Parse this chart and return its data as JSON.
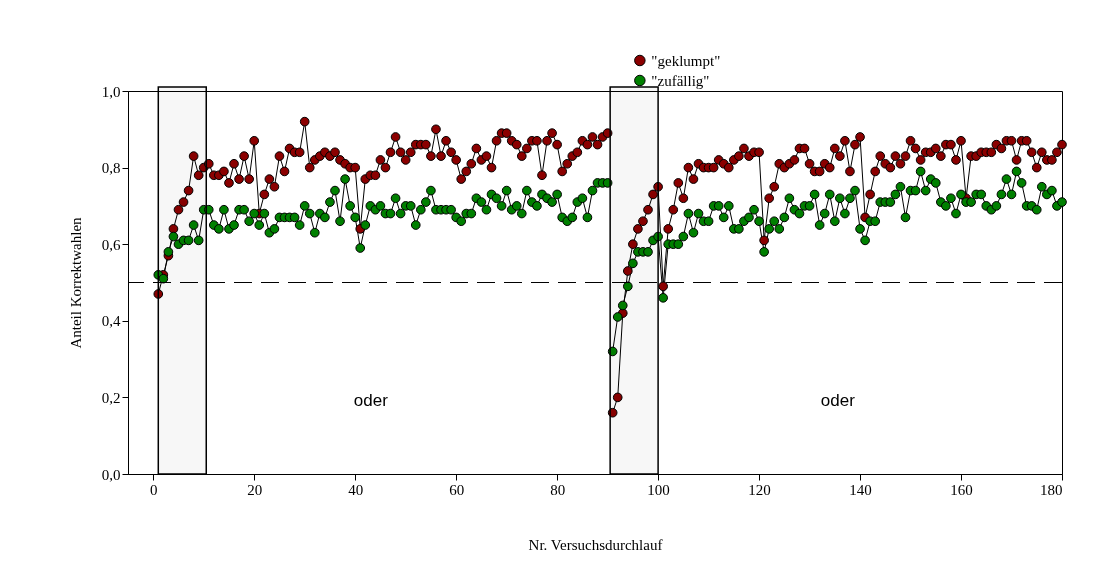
{
  "chart_data": {
    "type": "line",
    "xlabel": "Nr. Versuchsdurchlauf",
    "ylabel": "Anteil Korrektwahlen",
    "x": [
      1,
      2,
      3,
      4,
      5,
      6,
      7,
      8,
      9,
      10,
      11,
      12,
      13,
      14,
      15,
      16,
      17,
      18,
      19,
      20,
      21,
      22,
      23,
      24,
      25,
      26,
      27,
      28,
      29,
      30,
      31,
      32,
      33,
      34,
      35,
      36,
      37,
      38,
      39,
      40,
      41,
      42,
      43,
      44,
      45,
      46,
      47,
      48,
      49,
      50,
      51,
      52,
      53,
      54,
      55,
      56,
      57,
      58,
      59,
      60,
      61,
      62,
      63,
      64,
      65,
      66,
      67,
      68,
      69,
      70,
      71,
      72,
      73,
      74,
      75,
      76,
      77,
      78,
      79,
      80,
      81,
      82,
      83,
      84,
      85,
      86,
      87,
      88,
      89,
      90,
      90.5,
      91,
      92,
      93,
      94,
      95,
      96,
      97,
      98,
      99,
      100,
      101,
      102,
      103,
      104,
      105,
      106,
      107,
      108,
      109,
      110,
      111,
      112,
      113,
      114,
      115,
      116,
      117,
      118,
      119,
      120,
      121,
      122,
      123,
      124,
      125,
      126,
      127,
      128,
      129,
      130,
      131,
      132,
      133,
      134,
      135,
      136,
      137,
      138,
      139,
      140,
      141,
      142,
      143,
      144,
      145,
      146,
      147,
      148,
      149,
      150,
      151,
      152,
      153,
      154,
      155,
      156,
      157,
      158,
      159,
      160,
      161,
      162,
      163,
      164,
      165,
      166,
      167,
      168,
      169,
      170,
      171,
      172,
      173,
      174,
      175,
      176,
      177,
      178,
      179,
      180
    ],
    "series": [
      {
        "name": "\"geklumpt\"",
        "color": "#8b0000",
        "values": [
          0.47,
          0.52,
          0.57,
          0.64,
          0.69,
          0.71,
          0.74,
          0.83,
          0.78,
          0.8,
          0.81,
          0.78,
          0.78,
          0.79,
          0.76,
          0.81,
          0.77,
          0.83,
          0.77,
          0.87,
          0.68,
          0.73,
          0.77,
          0.75,
          0.83,
          0.79,
          0.85,
          0.84,
          0.84,
          0.92,
          0.8,
          0.82,
          0.83,
          0.84,
          0.83,
          0.84,
          0.82,
          0.81,
          0.8,
          0.8,
          0.64,
          0.77,
          0.78,
          0.78,
          0.82,
          0.8,
          0.84,
          0.88,
          0.84,
          0.82,
          0.84,
          0.86,
          0.86,
          0.86,
          0.83,
          0.9,
          0.83,
          0.87,
          0.84,
          0.82,
          0.77,
          0.79,
          0.81,
          0.85,
          0.82,
          0.83,
          0.8,
          0.87,
          0.89,
          0.89,
          0.87,
          0.86,
          0.83,
          0.85,
          0.87,
          0.87,
          0.78,
          0.87,
          0.89,
          0.86,
          0.79,
          0.81,
          0.83,
          0.84,
          0.87,
          0.86,
          0.88,
          0.86,
          0.88,
          0.89,
          null,
          0.16,
          0.2,
          0.42,
          0.53,
          0.6,
          0.64,
          0.66,
          0.69,
          0.73,
          0.75,
          0.49,
          0.64,
          0.69,
          0.76,
          0.72,
          0.8,
          0.77,
          0.81,
          0.8,
          0.8,
          0.8,
          0.82,
          0.81,
          0.8,
          0.82,
          0.83,
          0.85,
          0.83,
          0.84,
          0.84,
          0.61,
          0.72,
          0.75,
          0.81,
          0.8,
          0.81,
          0.82,
          0.85,
          0.85,
          0.81,
          0.79,
          0.79,
          0.81,
          0.8,
          0.85,
          0.83,
          0.87,
          0.79,
          0.86,
          0.88,
          0.67,
          0.73,
          0.79,
          0.83,
          0.81,
          0.8,
          0.83,
          0.81,
          0.83,
          0.87,
          0.85,
          0.82,
          0.84,
          0.84,
          0.85,
          0.83,
          0.86,
          0.86,
          0.82,
          0.87,
          0.72,
          0.83,
          0.83,
          0.84,
          0.84,
          0.84,
          0.86,
          0.85,
          0.87,
          0.87,
          0.82,
          0.87,
          0.87,
          0.84,
          0.8,
          0.84,
          0.82,
          0.82,
          0.84,
          0.86
        ]
      },
      {
        "name": "\"zufällig\"",
        "color": "#008000",
        "values": [
          0.52,
          0.51,
          0.58,
          0.62,
          0.6,
          0.61,
          0.61,
          0.65,
          0.61,
          0.69,
          0.69,
          0.65,
          0.64,
          0.69,
          0.64,
          0.65,
          0.69,
          0.69,
          0.66,
          0.68,
          0.65,
          0.68,
          0.63,
          0.64,
          0.67,
          0.67,
          0.67,
          0.67,
          0.65,
          0.7,
          0.68,
          0.63,
          0.68,
          0.67,
          0.71,
          0.74,
          0.66,
          0.77,
          0.7,
          0.67,
          0.59,
          0.65,
          0.7,
          0.69,
          0.7,
          0.68,
          0.68,
          0.72,
          0.68,
          0.7,
          0.7,
          0.65,
          0.69,
          0.71,
          0.74,
          0.69,
          0.69,
          0.69,
          0.69,
          0.67,
          0.66,
          0.68,
          0.68,
          0.72,
          0.71,
          0.69,
          0.73,
          0.72,
          0.7,
          0.74,
          0.69,
          0.7,
          0.68,
          0.74,
          0.71,
          0.7,
          0.73,
          0.72,
          0.71,
          0.73,
          0.67,
          0.66,
          0.67,
          0.71,
          0.72,
          0.67,
          0.74,
          0.76,
          0.76,
          0.76,
          null,
          0.32,
          0.41,
          0.44,
          0.49,
          0.55,
          0.58,
          0.58,
          0.58,
          0.61,
          0.62,
          0.46,
          0.6,
          0.6,
          0.6,
          0.62,
          0.68,
          0.63,
          0.68,
          0.66,
          0.66,
          0.7,
          0.7,
          0.67,
          0.7,
          0.64,
          0.64,
          0.66,
          0.67,
          0.69,
          0.66,
          0.58,
          0.64,
          0.66,
          0.64,
          0.67,
          0.72,
          0.69,
          0.68,
          0.7,
          0.7,
          0.73,
          0.65,
          0.68,
          0.73,
          0.66,
          0.72,
          0.68,
          0.72,
          0.74,
          0.64,
          0.61,
          0.66,
          0.66,
          0.71,
          0.71,
          0.71,
          0.73,
          0.75,
          0.67,
          0.74,
          0.74,
          0.79,
          0.74,
          0.77,
          0.76,
          0.71,
          0.7,
          0.72,
          0.68,
          0.73,
          0.71,
          0.71,
          0.73,
          0.73,
          0.7,
          0.69,
          0.7,
          0.73,
          0.77,
          0.73,
          0.79,
          0.76,
          0.7,
          0.7,
          0.69,
          0.75,
          0.73,
          0.74,
          0.7,
          0.71
        ]
      }
    ],
    "xlim": [
      -5,
      180
    ],
    "xticks": [
      0,
      20,
      40,
      60,
      80,
      100,
      120,
      140,
      160,
      180
    ],
    "ylim": [
      0,
      1
    ],
    "yticks": [
      {
        "value": 0,
        "label": "0,0"
      },
      {
        "value": 0.2,
        "label": "0,2"
      },
      {
        "value": 0.4,
        "label": "0,4"
      },
      {
        "value": 0.6,
        "label": "0,6"
      },
      {
        "value": 0.8,
        "label": "0,8"
      },
      {
        "value": 1,
        "label": "1,0"
      }
    ],
    "ref_lines": [
      {
        "axis": "y",
        "value": 0.5,
        "color": "#000000",
        "line_style": "dashed"
      }
    ],
    "bands": [
      {
        "axis": "x",
        "from": 1,
        "to": 10.5,
        "color": "#000000"
      },
      {
        "axis": "x",
        "from": 90.5,
        "to": 100,
        "color": "#000000"
      }
    ],
    "annotations": [
      "oder",
      "oder"
    ],
    "grid": false,
    "legend": "top right",
    "marker": "circle",
    "line_style": "solid"
  }
}
